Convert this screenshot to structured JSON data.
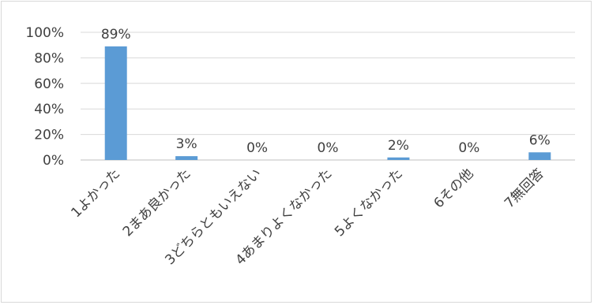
{
  "chart_data": {
    "type": "bar",
    "title": "",
    "xlabel": "",
    "ylabel": "",
    "categories": [
      "1よかった",
      "2まあ良かった",
      "3どちらともいえない",
      "4あまりよくなかった",
      "5よくなかった",
      "6その他",
      "7無回答"
    ],
    "values": [
      89,
      3,
      0,
      0,
      2,
      0,
      6
    ],
    "data_labels": [
      "89%",
      "3%",
      "0%",
      "0%",
      "2%",
      "0%",
      "6%"
    ],
    "ylim": [
      0,
      100
    ],
    "yticks": [
      0,
      20,
      40,
      60,
      80,
      100
    ],
    "ytick_labels": [
      "0%",
      "20%",
      "40%",
      "60%",
      "80%",
      "100%"
    ],
    "grid": true,
    "legend": "none",
    "colors": {
      "bar": "#5b9bd5",
      "grid": "#d9d9d9",
      "axis": "#bfbfbf",
      "text": "#404040"
    }
  }
}
